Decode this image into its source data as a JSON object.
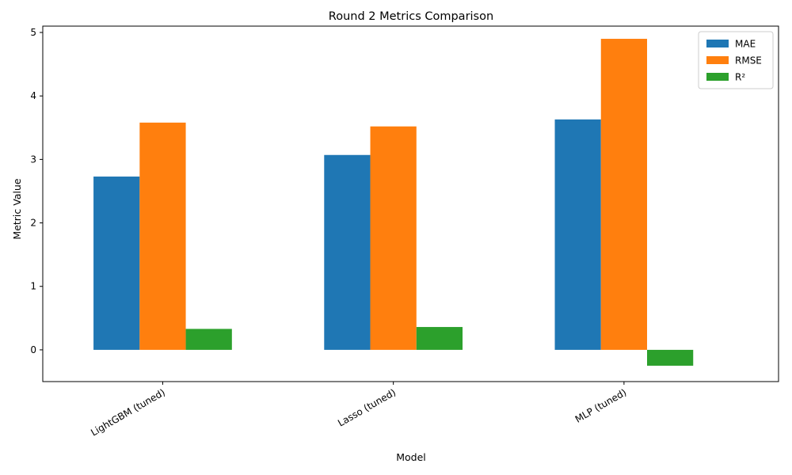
{
  "chart_data": {
    "type": "bar",
    "title": "Round 2 Metrics Comparison",
    "xlabel": "Model",
    "ylabel": "Metric Value",
    "categories": [
      "LightGBM (tuned)",
      "Lasso (tuned)",
      "MLP (tuned)"
    ],
    "series": [
      {
        "name": "MAE",
        "color": "#1f77b4",
        "values": [
          2.73,
          3.07,
          3.63
        ]
      },
      {
        "name": "RMSE",
        "color": "#ff7f0e",
        "values": [
          3.58,
          3.52,
          4.9
        ]
      },
      {
        "name": "R²",
        "color": "#2ca02c",
        "values": [
          0.33,
          0.36,
          -0.25
        ]
      }
    ],
    "ylim": [
      -0.5,
      5.1
    ],
    "yticks": [
      "0",
      "1",
      "2",
      "3",
      "4",
      "5"
    ],
    "legend_position": "top-right",
    "grid": false
  }
}
